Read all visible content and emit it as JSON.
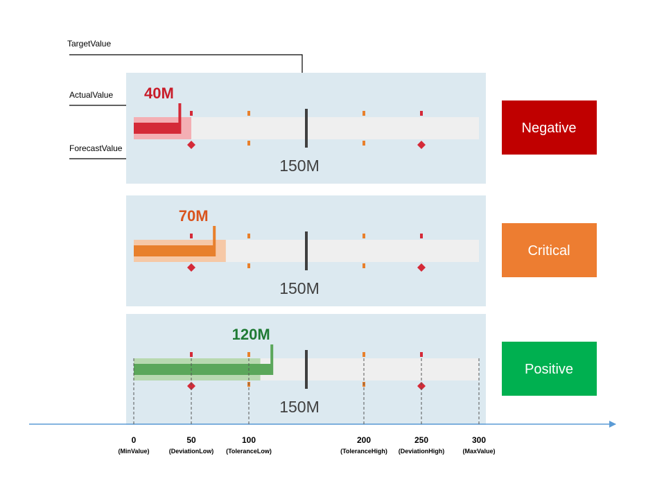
{
  "annotations": {
    "target_label": "TargetValue",
    "actual_label": "ActualValue",
    "forecast_label": "ForecastValue"
  },
  "chart_data": {
    "type": "bullet",
    "scale": {
      "min": 0,
      "max": 300
    },
    "thresholds": [
      {
        "value": 0,
        "label": "0",
        "name": "(MinValue)"
      },
      {
        "value": 50,
        "label": "50",
        "name": "(DeviationLow)"
      },
      {
        "value": 100,
        "label": "100",
        "name": "(ToleranceLow)"
      },
      {
        "value": 200,
        "label": "200",
        "name": "(ToleranceHigh)"
      },
      {
        "value": 250,
        "label": "250",
        "name": "(DeviationHigh)"
      },
      {
        "value": 300,
        "label": "300",
        "name": "(MaxValue)"
      }
    ],
    "rows": [
      {
        "status": "Negative",
        "actual": 40,
        "actual_label": "40M",
        "forecast": 50,
        "target": 150,
        "target_label": "150M",
        "status_color": "#c00000",
        "actual_color": "#d42a38",
        "forecast_color": "#f4afb4",
        "value_text_color": "#c81d2a"
      },
      {
        "status": "Critical",
        "actual": 70,
        "actual_label": "70M",
        "forecast": 80,
        "target": 150,
        "target_label": "150M",
        "status_color": "#ed7d31",
        "actual_color": "#e8802c",
        "forecast_color": "#f6c8a6",
        "value_text_color": "#d9541e"
      },
      {
        "status": "Positive",
        "actual": 120,
        "actual_label": "120M",
        "forecast": 110,
        "target": 150,
        "target_label": "150M",
        "status_color": "#00b050",
        "actual_color": "#5ba75b",
        "forecast_color": "#b8d9b0",
        "value_text_color": "#1f7a34"
      }
    ],
    "colors": {
      "panel": "#dce9f0",
      "track": "#efefef",
      "target": "#404040",
      "deviation_marker": "#d42a38",
      "tolerance_marker": "#e8802c",
      "axis": "#5b9bd5"
    }
  }
}
